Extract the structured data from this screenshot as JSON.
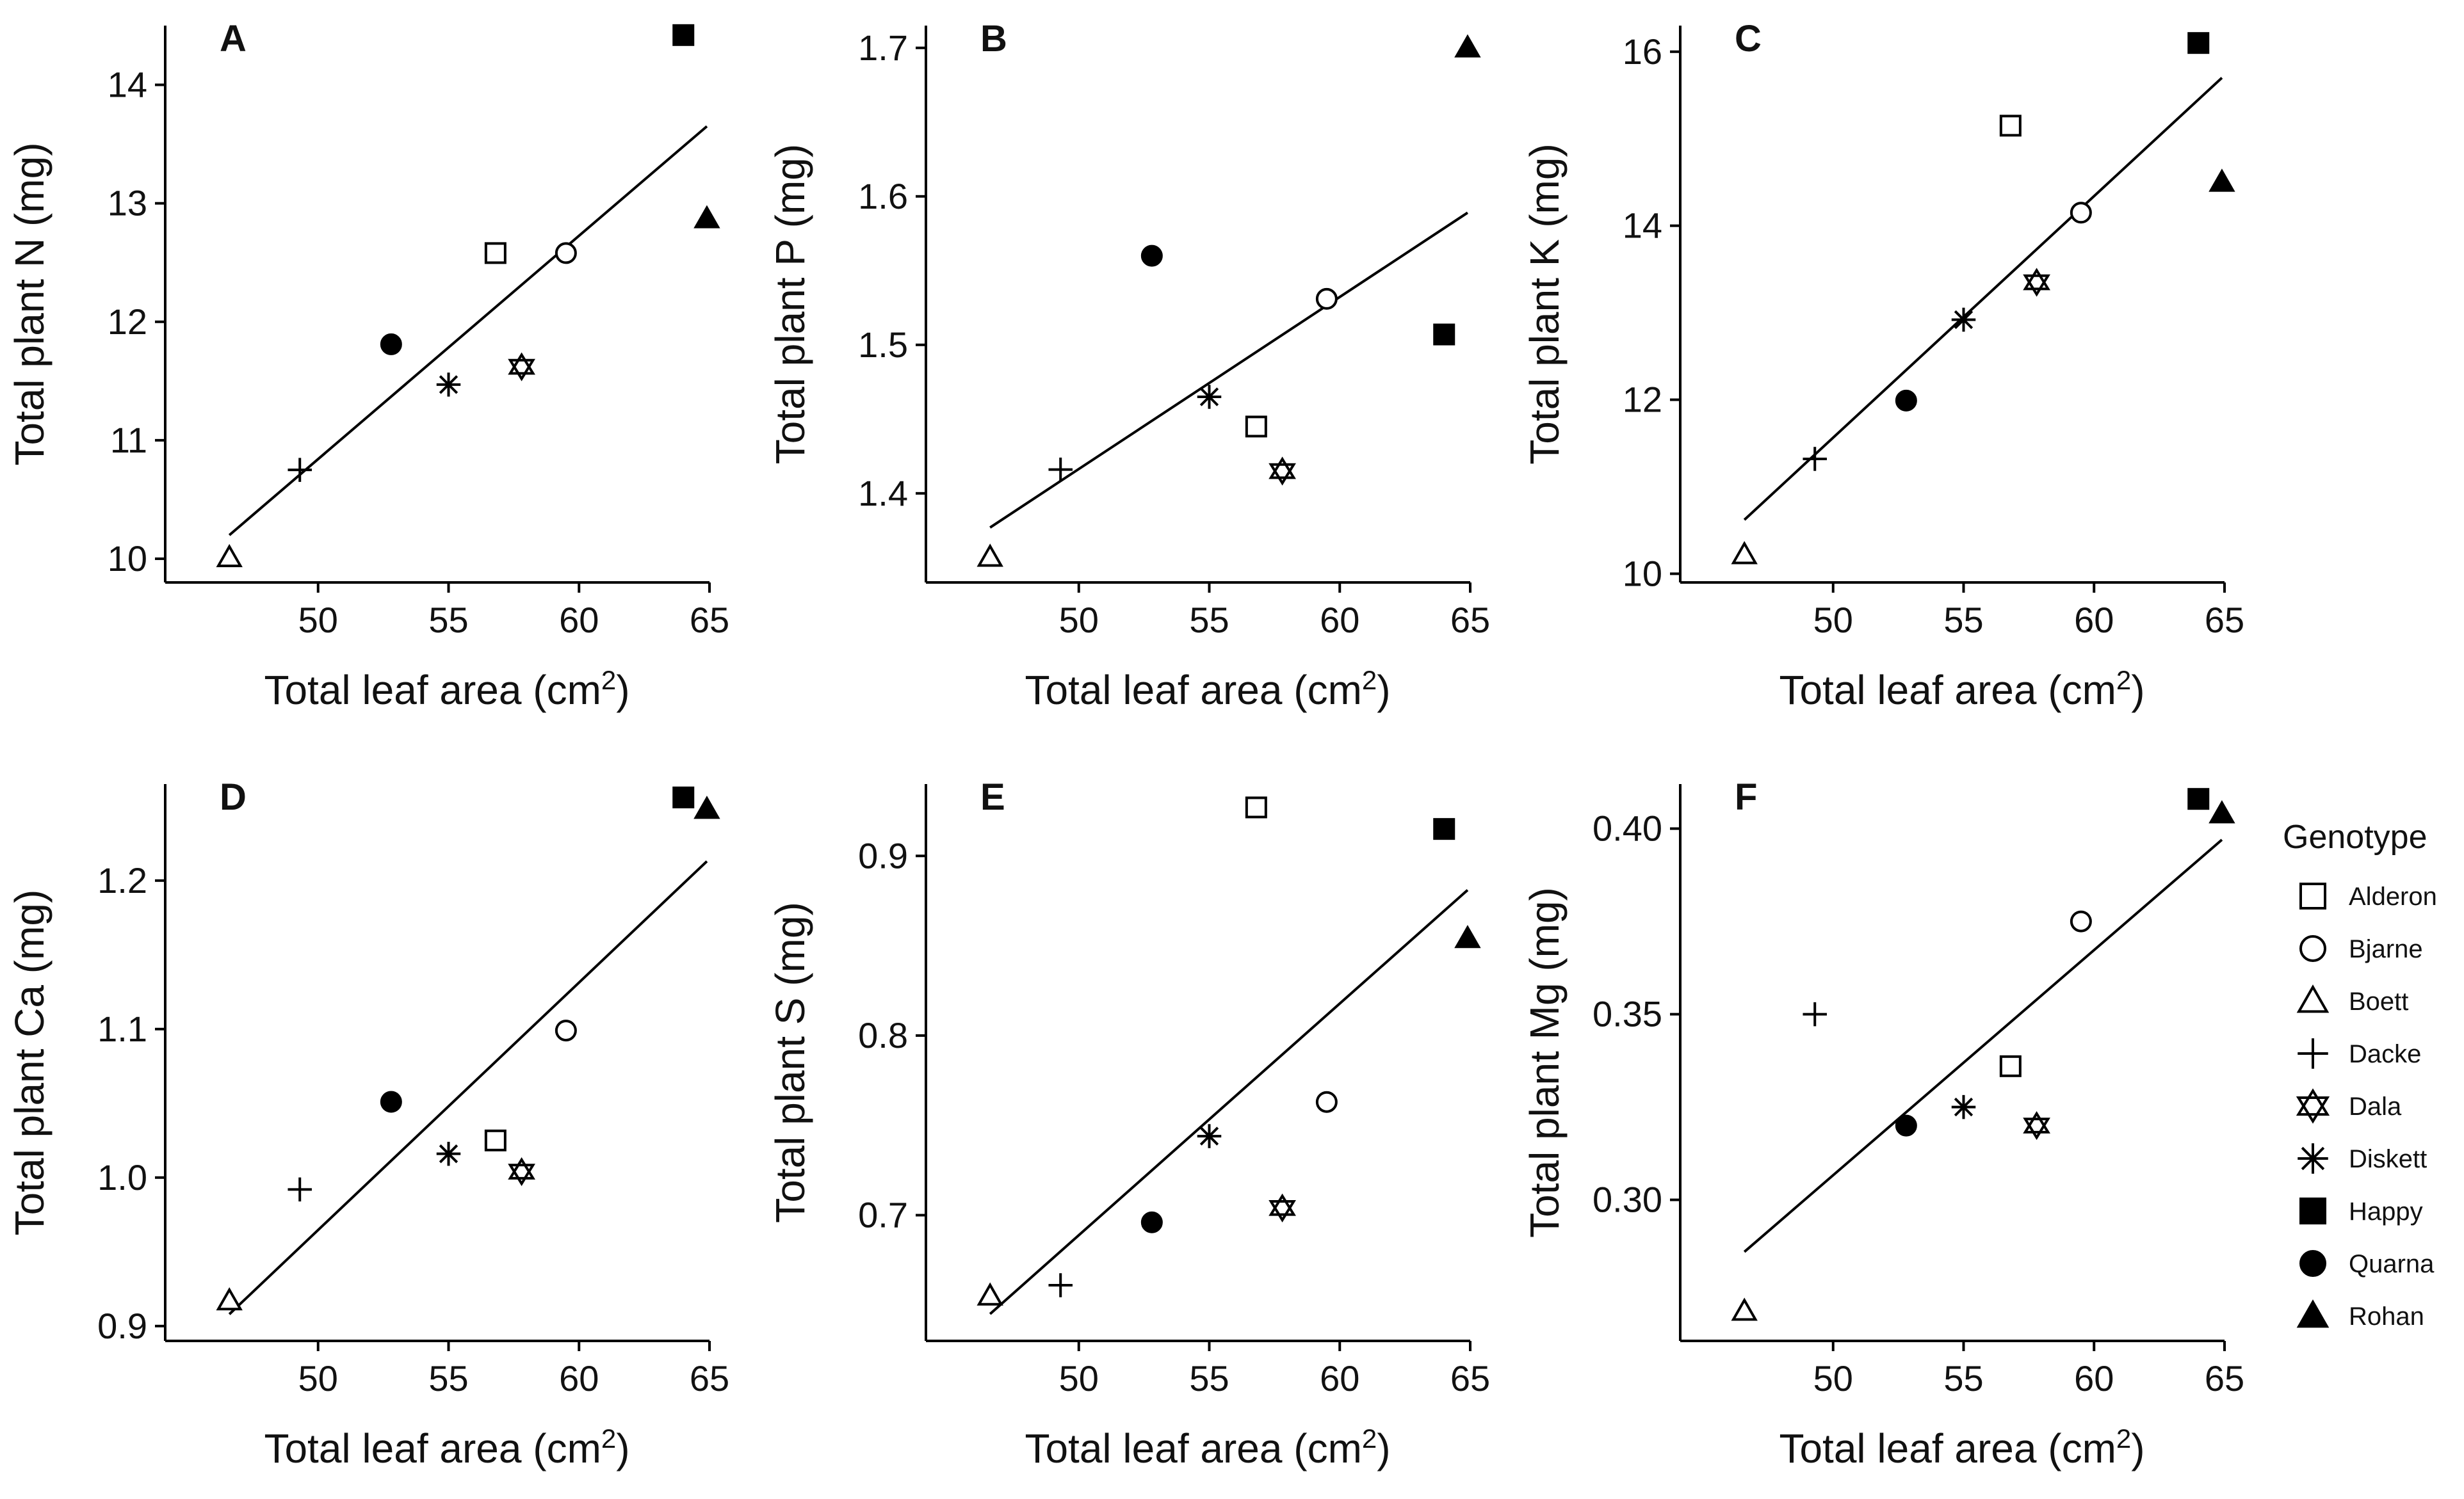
{
  "chart_data": [
    {
      "panel": "A",
      "type": "scatter",
      "xlabel": "Total leaf area (cm2)",
      "xlabel_main": "Total leaf area (cm",
      "xlabel_sup": "2",
      "xlabel_end": ")",
      "ylabel": "Total plant N (mg)",
      "xlim": [
        45,
        65
      ],
      "ylim": [
        9.8,
        14.5
      ],
      "xticks": [
        50,
        55,
        60,
        65
      ],
      "yticks": [
        10,
        11,
        12,
        13,
        14
      ],
      "points": [
        {
          "genotype": "Alderon",
          "x": 56.8,
          "y": 12.58
        },
        {
          "genotype": "Bjarne",
          "x": 59.5,
          "y": 12.58
        },
        {
          "genotype": "Boett",
          "x": 46.6,
          "y": 10.01
        },
        {
          "genotype": "Dacke",
          "x": 49.3,
          "y": 10.75
        },
        {
          "genotype": "Dala",
          "x": 57.8,
          "y": 11.62
        },
        {
          "genotype": "Diskett",
          "x": 55.0,
          "y": 11.47
        },
        {
          "genotype": "Happy",
          "x": 64.0,
          "y": 14.42
        },
        {
          "genotype": "Quarna",
          "x": 52.8,
          "y": 11.81
        },
        {
          "genotype": "Rohan",
          "x": 64.9,
          "y": 12.87
        }
      ],
      "fit": {
        "x": [
          46.6,
          64.9
        ],
        "y": [
          10.2,
          13.65
        ]
      }
    },
    {
      "panel": "B",
      "type": "scatter",
      "xlabel": "Total leaf area (cm2)",
      "xlabel_main": "Total leaf area (cm",
      "xlabel_sup": "2",
      "xlabel_end": ")",
      "ylabel": "Total plant P (mg)",
      "xlim": [
        45,
        65
      ],
      "ylim": [
        1.34,
        1.715
      ],
      "xticks": [
        50,
        55,
        60,
        65
      ],
      "yticks": [
        1.4,
        1.5,
        1.6,
        1.7
      ],
      "points": [
        {
          "genotype": "Alderon",
          "x": 56.8,
          "y": 1.445
        },
        {
          "genotype": "Bjarne",
          "x": 59.5,
          "y": 1.531
        },
        {
          "genotype": "Boett",
          "x": 46.6,
          "y": 1.357
        },
        {
          "genotype": "Dacke",
          "x": 49.3,
          "y": 1.416
        },
        {
          "genotype": "Dala",
          "x": 57.8,
          "y": 1.415
        },
        {
          "genotype": "Diskett",
          "x": 55.0,
          "y": 1.465
        },
        {
          "genotype": "Happy",
          "x": 64.0,
          "y": 1.507
        },
        {
          "genotype": "Quarna",
          "x": 52.8,
          "y": 1.56
        },
        {
          "genotype": "Rohan",
          "x": 64.9,
          "y": 1.7
        }
      ],
      "fit": {
        "x": [
          46.6,
          64.9
        ],
        "y": [
          1.377,
          1.589
        ]
      }
    },
    {
      "panel": "C",
      "type": "scatter",
      "xlabel": "Total leaf area (cm2)",
      "xlabel_main": "Total leaf area (cm",
      "xlabel_sup": "2",
      "xlabel_end": ")",
      "ylabel": "Total plant K (mg)",
      "xlim": [
        45,
        65
      ],
      "ylim": [
        9.9,
        16.3
      ],
      "xticks": [
        50,
        55,
        60,
        65
      ],
      "yticks": [
        10,
        12,
        14,
        16
      ],
      "points": [
        {
          "genotype": "Alderon",
          "x": 56.8,
          "y": 15.15
        },
        {
          "genotype": "Bjarne",
          "x": 59.5,
          "y": 14.15
        },
        {
          "genotype": "Boett",
          "x": 46.6,
          "y": 10.22
        },
        {
          "genotype": "Dacke",
          "x": 49.3,
          "y": 11.32
        },
        {
          "genotype": "Dala",
          "x": 57.8,
          "y": 13.35
        },
        {
          "genotype": "Diskett",
          "x": 55.0,
          "y": 12.92
        },
        {
          "genotype": "Happy",
          "x": 64.0,
          "y": 16.1
        },
        {
          "genotype": "Quarna",
          "x": 52.8,
          "y": 11.99
        },
        {
          "genotype": "Rohan",
          "x": 64.9,
          "y": 14.5
        }
      ],
      "fit": {
        "x": [
          46.6,
          64.9
        ],
        "y": [
          10.62,
          15.7
        ]
      }
    },
    {
      "panel": "D",
      "type": "scatter",
      "xlabel": "Total leaf area (cm2)",
      "xlabel_main": "Total leaf area (cm",
      "xlabel_sup": "2",
      "xlabel_end": ")",
      "ylabel": "Total plant Ca (mg)",
      "xlim": [
        45,
        65
      ],
      "ylim": [
        0.89,
        1.265
      ],
      "xticks": [
        50,
        55,
        60,
        65
      ],
      "yticks": [
        0.9,
        1.0,
        1.1,
        1.2
      ],
      "ytick_labels": [
        "0.9",
        "1.0",
        "1.1",
        "1.2"
      ],
      "points": [
        {
          "genotype": "Alderon",
          "x": 56.8,
          "y": 1.025
        },
        {
          "genotype": "Bjarne",
          "x": 59.5,
          "y": 1.099
        },
        {
          "genotype": "Boett",
          "x": 46.6,
          "y": 0.917
        },
        {
          "genotype": "Dacke",
          "x": 49.3,
          "y": 0.992
        },
        {
          "genotype": "Dala",
          "x": 57.8,
          "y": 1.004
        },
        {
          "genotype": "Diskett",
          "x": 55.0,
          "y": 1.016
        },
        {
          "genotype": "Happy",
          "x": 64.0,
          "y": 1.256
        },
        {
          "genotype": "Quarna",
          "x": 52.8,
          "y": 1.051
        },
        {
          "genotype": "Rohan",
          "x": 64.9,
          "y": 1.248
        }
      ],
      "fit": {
        "x": [
          46.6,
          64.9
        ],
        "y": [
          0.908,
          1.213
        ]
      }
    },
    {
      "panel": "E",
      "type": "scatter",
      "xlabel": "Total leaf area (cm2)",
      "xlabel_main": "Total leaf area (cm",
      "xlabel_sup": "2",
      "xlabel_end": ")",
      "ylabel": "Total plant S (mg)",
      "xlim": [
        45,
        65
      ],
      "ylim": [
        0.63,
        0.94
      ],
      "xticks": [
        50,
        55,
        60,
        65
      ],
      "yticks": [
        0.7,
        0.8,
        0.9
      ],
      "points": [
        {
          "genotype": "Alderon",
          "x": 56.8,
          "y": 0.927
        },
        {
          "genotype": "Bjarne",
          "x": 59.5,
          "y": 0.763
        },
        {
          "genotype": "Boett",
          "x": 46.6,
          "y": 0.655
        },
        {
          "genotype": "Dacke",
          "x": 49.3,
          "y": 0.661
        },
        {
          "genotype": "Dala",
          "x": 57.8,
          "y": 0.704
        },
        {
          "genotype": "Diskett",
          "x": 55.0,
          "y": 0.744
        },
        {
          "genotype": "Happy",
          "x": 64.0,
          "y": 0.915
        },
        {
          "genotype": "Quarna",
          "x": 52.8,
          "y": 0.696
        },
        {
          "genotype": "Rohan",
          "x": 64.9,
          "y": 0.854
        }
      ],
      "fit": {
        "x": [
          46.6,
          64.9
        ],
        "y": [
          0.645,
          0.881
        ]
      }
    },
    {
      "panel": "F",
      "type": "scatter",
      "xlabel": "Total leaf area (cm2)",
      "xlabel_main": "Total leaf area (cm",
      "xlabel_sup": "2",
      "xlabel_end": ")",
      "ylabel": "Total plant Mg (mg)",
      "xlim": [
        45,
        65
      ],
      "ylim": [
        0.262,
        0.412
      ],
      "xticks": [
        50,
        55,
        60,
        65
      ],
      "yticks": [
        0.3,
        0.35,
        0.4
      ],
      "ytick_labels": [
        "0.30",
        "0.35",
        "0.40"
      ],
      "points": [
        {
          "genotype": "Alderon",
          "x": 56.8,
          "y": 0.336
        },
        {
          "genotype": "Bjarne",
          "x": 59.5,
          "y": 0.375
        },
        {
          "genotype": "Boett",
          "x": 46.6,
          "y": 0.27
        },
        {
          "genotype": "Dacke",
          "x": 49.3,
          "y": 0.35
        },
        {
          "genotype": "Dala",
          "x": 57.8,
          "y": 0.32
        },
        {
          "genotype": "Diskett",
          "x": 55.0,
          "y": 0.325
        },
        {
          "genotype": "Happy",
          "x": 64.0,
          "y": 0.408
        },
        {
          "genotype": "Quarna",
          "x": 52.8,
          "y": 0.32
        },
        {
          "genotype": "Rohan",
          "x": 64.9,
          "y": 0.404
        }
      ],
      "fit": {
        "x": [
          46.6,
          64.9
        ],
        "y": [
          0.286,
          0.397
        ]
      }
    }
  ],
  "legend": {
    "title": "Genotype",
    "placement": "right",
    "items": [
      {
        "label": "Alderon",
        "marker": "square-open"
      },
      {
        "label": "Bjarne",
        "marker": "circle-open"
      },
      {
        "label": "Boett",
        "marker": "triangle-open"
      },
      {
        "label": "Dacke",
        "marker": "plus"
      },
      {
        "label": "Dala",
        "marker": "star-of-david"
      },
      {
        "label": "Diskett",
        "marker": "asterisk"
      },
      {
        "label": "Happy",
        "marker": "square-filled"
      },
      {
        "label": "Quarna",
        "marker": "circle-filled"
      },
      {
        "label": "Rohan",
        "marker": "triangle-filled"
      }
    ]
  },
  "colors": {
    "ink": "#000000",
    "background": "#ffffff"
  }
}
